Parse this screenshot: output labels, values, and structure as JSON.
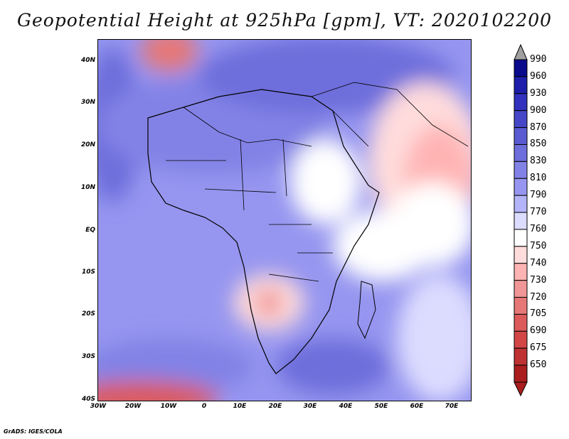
{
  "map": {
    "title": "Geopotential Height at 925hPa [gpm], VT: 2020102200",
    "lat_labels": [
      "40N",
      "30N",
      "20N",
      "10N",
      "EQ",
      "10S",
      "20S",
      "30S",
      "40S"
    ],
    "lon_labels": [
      "30W",
      "20W",
      "10W",
      "0",
      "10E",
      "20E",
      "30E",
      "40E",
      "50E",
      "60E",
      "70E"
    ],
    "colorbar": {
      "levels": [
        "990",
        "960",
        "930",
        "900",
        "870",
        "850",
        "830",
        "810",
        "790",
        "770",
        "760",
        "750",
        "740",
        "730",
        "720",
        "705",
        "690",
        "675",
        "650"
      ],
      "colors": [
        "#0a0a8c",
        "#1e1eaa",
        "#3232be",
        "#4646c8",
        "#5a5ad2",
        "#6e6edc",
        "#8282e6",
        "#9696f0",
        "#b4b4fa",
        "#dcdcff",
        "#ffffff",
        "#ffdcdc",
        "#ffb4b4",
        "#f09696",
        "#e67878",
        "#dc5a5a",
        "#d24646",
        "#be3232",
        "#aa1e1e"
      ]
    },
    "footer": "GrADS: IGES/COLA"
  }
}
